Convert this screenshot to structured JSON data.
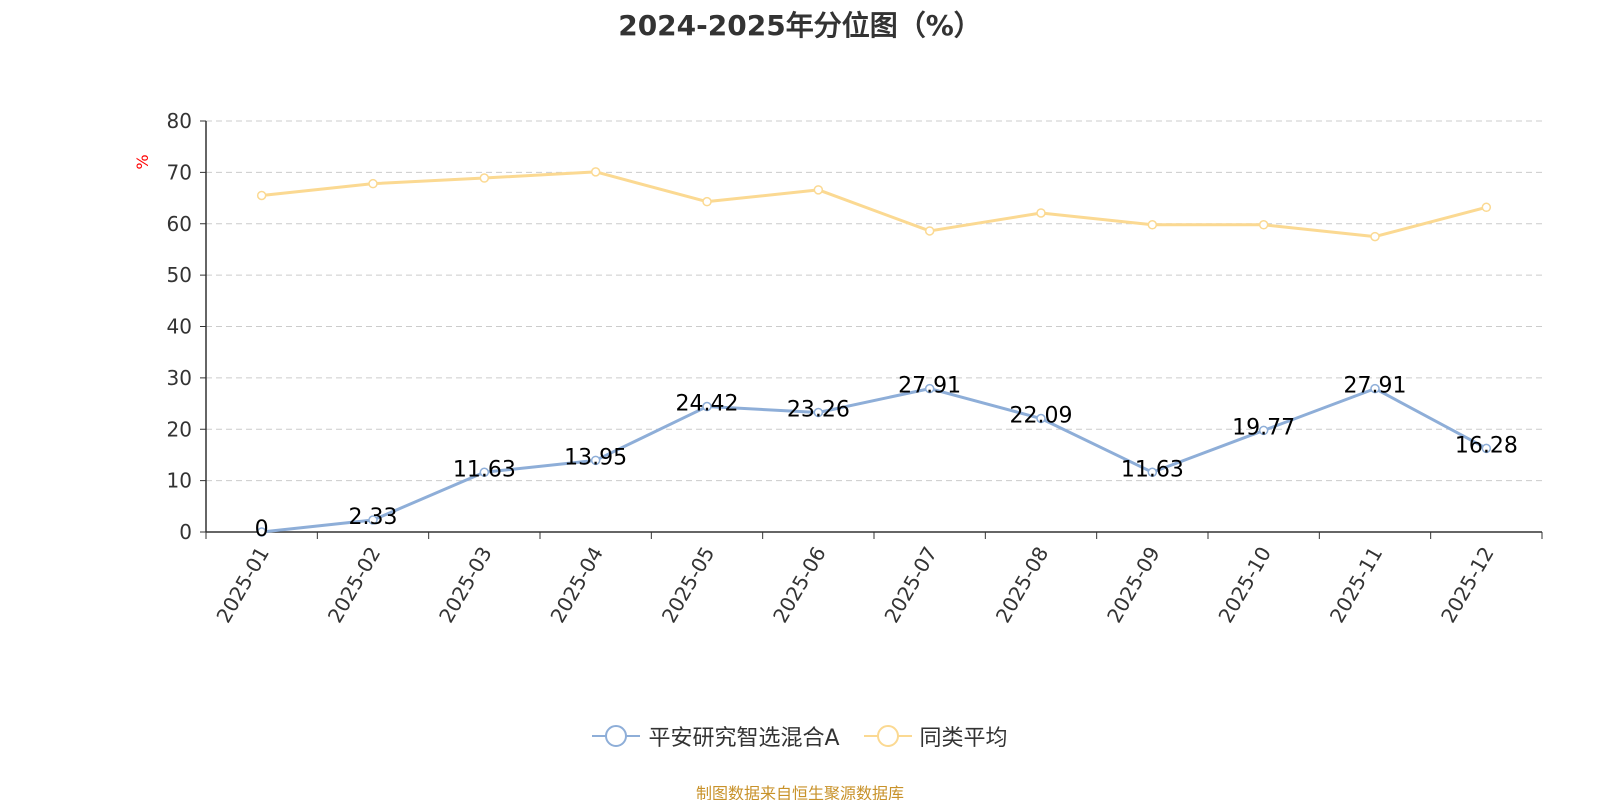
{
  "chart_data": {
    "type": "line",
    "title": "2024-2025年分位图（%）",
    "ylabel": "%",
    "xlabel": "",
    "categories": [
      "2025-01",
      "2025-02",
      "2025-03",
      "2025-04",
      "2025-05",
      "2025-06",
      "2025-07",
      "2025-08",
      "2025-09",
      "2025-10",
      "2025-11",
      "2025-12"
    ],
    "ylim": [
      0,
      80
    ],
    "yticks": [
      "0",
      "10",
      "20",
      "30",
      "40",
      "50",
      "60",
      "70",
      "80"
    ],
    "grid": true,
    "legend_position": "bottom",
    "series": [
      {
        "name": "平安研究智选混合A",
        "color": "#8eaed8",
        "show_labels": true,
        "values": [
          0,
          2.33,
          11.63,
          13.95,
          24.42,
          23.26,
          27.91,
          22.09,
          11.63,
          19.77,
          27.91,
          16.28
        ],
        "labels": [
          "0",
          "2.33",
          "11.63",
          "13.95",
          "24.42",
          "23.26",
          "27.91",
          "22.09",
          "11.63",
          "19.77",
          "27.91",
          "16.28"
        ]
      },
      {
        "name": "同类平均",
        "color": "#fbd992",
        "show_labels": false,
        "values": [
          65.5,
          67.8,
          68.9,
          70.1,
          64.3,
          66.6,
          58.6,
          62.1,
          59.8,
          59.8,
          57.5,
          63.2
        ]
      }
    ]
  },
  "footer": {
    "source": "制图数据来自恒生聚源数据库"
  },
  "colors": {
    "axis": "#333333",
    "grid": "#cccccc",
    "ylabel": "#ff0000",
    "source": "#c8922a"
  }
}
